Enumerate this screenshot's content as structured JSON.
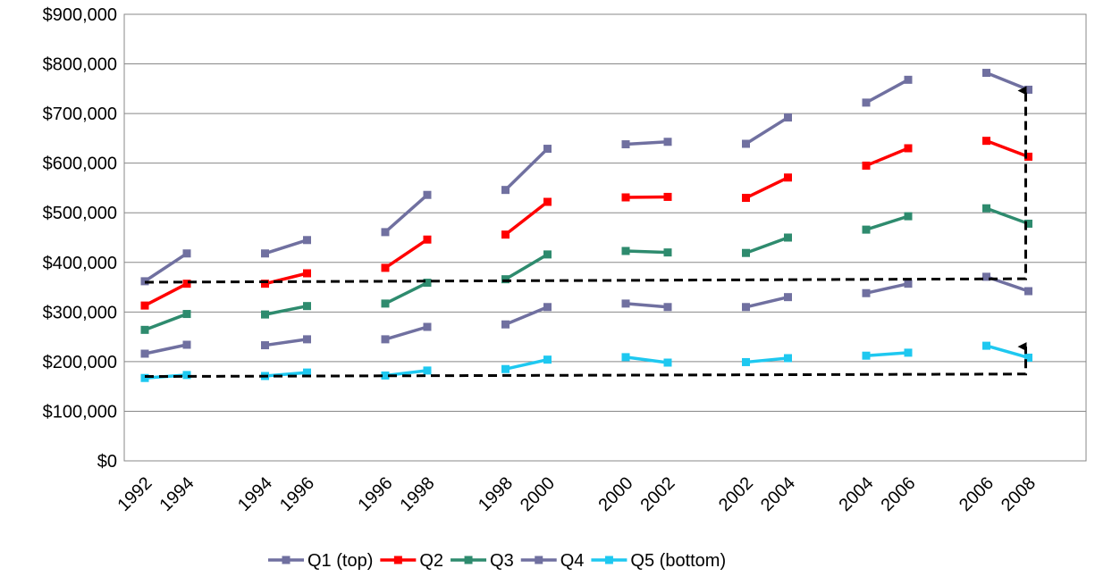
{
  "chart_data": {
    "type": "line",
    "title": "",
    "xlabel": "",
    "ylabel": "",
    "ylim": [
      0,
      900000
    ],
    "yticks": [
      0,
      100000,
      200000,
      300000,
      400000,
      500000,
      600000,
      700000,
      800000,
      900000
    ],
    "ytick_labels": [
      "$0",
      "$100,000",
      "$200,000",
      "$300,000",
      "$400,000",
      "$500,000",
      "$600,000",
      "$700,000",
      "$800,000",
      "$900,000"
    ],
    "grid": "horizontal",
    "legend_position": "bottom",
    "periods": [
      {
        "start_label": "1992",
        "end_label": "1994"
      },
      {
        "start_label": "1994",
        "end_label": "1996"
      },
      {
        "start_label": "1996",
        "end_label": "1998"
      },
      {
        "start_label": "1998",
        "end_label": "2000"
      },
      {
        "start_label": "2000",
        "end_label": "2002"
      },
      {
        "start_label": "2002",
        "end_label": "2004"
      },
      {
        "start_label": "2004",
        "end_label": "2006"
      },
      {
        "start_label": "2006",
        "end_label": "2008"
      }
    ],
    "series": [
      {
        "name": "Q1 (top)",
        "color": "#7070A0",
        "marker": "square",
        "values": [
          [
            362000,
            418000
          ],
          [
            418000,
            445000
          ],
          [
            461000,
            536000
          ],
          [
            546000,
            629000
          ],
          [
            638000,
            643000
          ],
          [
            639000,
            692000
          ],
          [
            722000,
            768000
          ],
          [
            782000,
            748000
          ]
        ]
      },
      {
        "name": "Q2",
        "color": "#FF0000",
        "marker": "square",
        "values": [
          [
            313000,
            357000
          ],
          [
            357000,
            378000
          ],
          [
            389000,
            446000
          ],
          [
            456000,
            522000
          ],
          [
            531000,
            532000
          ],
          [
            530000,
            571000
          ],
          [
            595000,
            630000
          ],
          [
            645000,
            613000
          ]
        ]
      },
      {
        "name": "Q3",
        "color": "#2E8B6E",
        "marker": "square",
        "values": [
          [
            264000,
            296000
          ],
          [
            295000,
            312000
          ],
          [
            317000,
            359000
          ],
          [
            366000,
            416000
          ],
          [
            423000,
            420000
          ],
          [
            419000,
            450000
          ],
          [
            466000,
            493000
          ],
          [
            509000,
            478000
          ]
        ]
      },
      {
        "name": "Q4",
        "color": "#7070A0",
        "marker": "square",
        "values": [
          [
            216000,
            234000
          ],
          [
            233000,
            245000
          ],
          [
            245000,
            270000
          ],
          [
            275000,
            310000
          ],
          [
            317000,
            310000
          ],
          [
            310000,
            330000
          ],
          [
            338000,
            357000
          ],
          [
            371000,
            342000
          ]
        ]
      },
      {
        "name": "Q5 (bottom)",
        "color": "#1EC8F0",
        "marker": "square",
        "values": [
          [
            167000,
            173000
          ],
          [
            171000,
            178000
          ],
          [
            172000,
            182000
          ],
          [
            185000,
            204000
          ],
          [
            209000,
            198000
          ],
          [
            199000,
            207000
          ],
          [
            212000,
            218000
          ],
          [
            232000,
            208000
          ]
        ]
      }
    ],
    "annotations": [
      {
        "type": "dashed-arrow",
        "from_period": 0,
        "to_period": 7,
        "from_value": 360000,
        "via_value": 367000,
        "to_value": 748000
      },
      {
        "type": "dashed-arrow",
        "from_period": 0,
        "to_period": 7,
        "from_value": 170000,
        "via_value": 175000,
        "to_value": 232000
      }
    ]
  }
}
